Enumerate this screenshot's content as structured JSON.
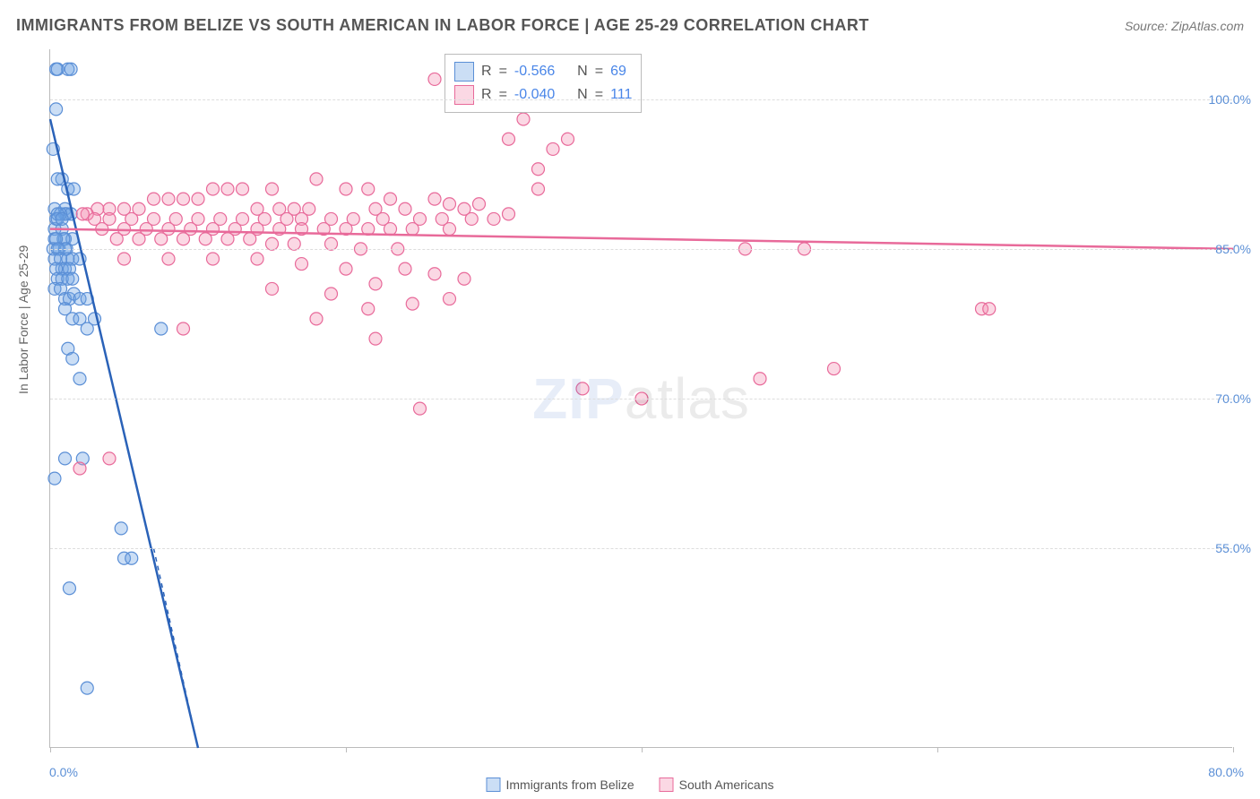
{
  "title": "IMMIGRANTS FROM BELIZE VS SOUTH AMERICAN IN LABOR FORCE | AGE 25-29 CORRELATION CHART",
  "source": "Source: ZipAtlas.com",
  "ylabel": "In Labor Force | Age 25-29",
  "watermark_zip": "ZIP",
  "watermark_atlas": "atlas",
  "chart": {
    "type": "scatter",
    "xlim": [
      0,
      80
    ],
    "ylim": [
      35,
      105
    ],
    "yticks": [
      55.0,
      70.0,
      85.0,
      100.0
    ],
    "ytick_labels": [
      "55.0%",
      "70.0%",
      "85.0%",
      "100.0%"
    ],
    "xticks": [
      0,
      20,
      40,
      60,
      80
    ],
    "x_start_label": "0.0%",
    "x_end_label": "80.0%",
    "background_color": "#ffffff",
    "grid_color": "#dddddd",
    "axis_color": "#bbbbbb",
    "marker_radius": 7,
    "marker_stroke_width": 1.2,
    "line_width": 2.5
  },
  "series": [
    {
      "name": "Immigrants from Belize",
      "label": "Immigrants from Belize",
      "color_fill": "rgba(107,160,227,0.35)",
      "color_stroke": "#5b8fd6",
      "line_color": "#2a62b8",
      "r_label": "R",
      "r_value": "-0.566",
      "n_label": "N",
      "n_value": "69",
      "trend": {
        "x1": 0,
        "y1": 98,
        "x2": 10,
        "y2": 35
      },
      "trend_dash": {
        "x1": 7,
        "y1": 55,
        "x2": 10,
        "y2": 35
      },
      "points": [
        [
          0.4,
          103
        ],
        [
          0.5,
          103
        ],
        [
          1.2,
          103
        ],
        [
          1.4,
          103
        ],
        [
          0.4,
          99
        ],
        [
          0.2,
          95
        ],
        [
          0.8,
          92
        ],
        [
          0.5,
          92
        ],
        [
          1.2,
          91
        ],
        [
          1.6,
          91
        ],
        [
          0.3,
          89
        ],
        [
          1.0,
          89
        ],
        [
          0.4,
          88
        ],
        [
          1.0,
          88.5
        ],
        [
          1.1,
          88.5
        ],
        [
          1.4,
          88.5
        ],
        [
          0.7,
          88.5
        ],
        [
          0.5,
          88.5
        ],
        [
          0.3,
          87
        ],
        [
          0.8,
          87
        ],
        [
          1.0,
          86
        ],
        [
          1.5,
          86
        ],
        [
          0.3,
          86
        ],
        [
          0.9,
          86
        ],
        [
          0.4,
          86
        ],
        [
          0.2,
          85
        ],
        [
          0.6,
          85
        ],
        [
          1.1,
          85
        ],
        [
          1.0,
          85
        ],
        [
          0.5,
          85
        ],
        [
          0.3,
          84
        ],
        [
          0.7,
          84
        ],
        [
          1.2,
          84
        ],
        [
          1.5,
          84
        ],
        [
          2.0,
          84
        ],
        [
          0.8,
          83
        ],
        [
          1.0,
          83
        ],
        [
          1.3,
          83
        ],
        [
          0.4,
          83
        ],
        [
          0.5,
          82
        ],
        [
          0.8,
          82
        ],
        [
          1.2,
          82
        ],
        [
          1.5,
          82
        ],
        [
          0.3,
          81
        ],
        [
          0.7,
          81
        ],
        [
          1.0,
          80
        ],
        [
          1.3,
          80
        ],
        [
          1.6,
          80.5
        ],
        [
          2.0,
          80
        ],
        [
          2.5,
          80
        ],
        [
          1.0,
          79
        ],
        [
          1.5,
          78
        ],
        [
          2.0,
          78
        ],
        [
          3.0,
          78
        ],
        [
          2.5,
          77
        ],
        [
          7.5,
          77
        ],
        [
          1.2,
          75
        ],
        [
          1.5,
          74
        ],
        [
          2.0,
          72
        ],
        [
          1.0,
          64
        ],
        [
          2.2,
          64
        ],
        [
          0.3,
          62
        ],
        [
          4.8,
          57
        ],
        [
          5.0,
          54
        ],
        [
          5.5,
          54
        ],
        [
          1.3,
          51
        ],
        [
          2.5,
          41
        ],
        [
          0.5,
          88
        ],
        [
          0.8,
          88
        ]
      ]
    },
    {
      "name": "South Americans",
      "label": "South Americans",
      "color_fill": "rgba(244,143,177,0.35)",
      "color_stroke": "#e86a9a",
      "line_color": "#e86a9a",
      "r_label": "R",
      "r_value": "-0.040",
      "n_label": "N",
      "n_value": "111",
      "trend": {
        "x1": 0,
        "y1": 87,
        "x2": 80,
        "y2": 85
      },
      "points": [
        [
          26,
          102
        ],
        [
          32,
          98
        ],
        [
          31,
          96
        ],
        [
          35,
          96
        ],
        [
          34,
          95
        ],
        [
          33,
          93
        ],
        [
          18,
          92
        ],
        [
          20,
          91
        ],
        [
          21.5,
          91
        ],
        [
          33,
          91
        ],
        [
          15,
          91
        ],
        [
          13,
          91
        ],
        [
          12,
          91
        ],
        [
          11,
          91
        ],
        [
          10,
          90
        ],
        [
          9,
          90
        ],
        [
          23,
          90
        ],
        [
          26,
          90
        ],
        [
          27,
          89.5
        ],
        [
          8,
          90
        ],
        [
          7,
          90
        ],
        [
          6,
          89
        ],
        [
          5,
          89
        ],
        [
          4,
          89
        ],
        [
          3.2,
          89
        ],
        [
          2.5,
          88.5
        ],
        [
          2.2,
          88.5
        ],
        [
          14,
          89
        ],
        [
          15.5,
          89
        ],
        [
          16.5,
          89
        ],
        [
          17.5,
          89
        ],
        [
          22,
          89
        ],
        [
          24,
          89
        ],
        [
          28,
          89
        ],
        [
          29,
          89.5
        ],
        [
          31,
          88.5
        ],
        [
          3,
          88
        ],
        [
          4,
          88
        ],
        [
          5.5,
          88
        ],
        [
          7,
          88
        ],
        [
          8.5,
          88
        ],
        [
          10,
          88
        ],
        [
          11.5,
          88
        ],
        [
          13,
          88
        ],
        [
          14.5,
          88
        ],
        [
          16,
          88
        ],
        [
          17,
          88
        ],
        [
          19,
          88
        ],
        [
          20.5,
          88
        ],
        [
          22.5,
          88
        ],
        [
          25,
          88
        ],
        [
          26.5,
          88
        ],
        [
          28.5,
          88
        ],
        [
          30,
          88
        ],
        [
          3.5,
          87
        ],
        [
          5,
          87
        ],
        [
          6.5,
          87
        ],
        [
          8,
          87
        ],
        [
          9.5,
          87
        ],
        [
          11,
          87
        ],
        [
          12.5,
          87
        ],
        [
          14,
          87
        ],
        [
          15.5,
          87
        ],
        [
          17,
          87
        ],
        [
          18.5,
          87
        ],
        [
          20,
          87
        ],
        [
          21.5,
          87
        ],
        [
          23,
          87
        ],
        [
          24.5,
          87
        ],
        [
          27,
          87
        ],
        [
          4.5,
          86
        ],
        [
          6,
          86
        ],
        [
          7.5,
          86
        ],
        [
          9,
          86
        ],
        [
          10.5,
          86
        ],
        [
          12,
          86
        ],
        [
          13.5,
          86
        ],
        [
          15,
          85.5
        ],
        [
          16.5,
          85.5
        ],
        [
          19,
          85.5
        ],
        [
          21,
          85
        ],
        [
          23.5,
          85
        ],
        [
          47,
          85
        ],
        [
          5,
          84
        ],
        [
          8,
          84
        ],
        [
          11,
          84
        ],
        [
          14,
          84
        ],
        [
          17,
          83.5
        ],
        [
          20,
          83
        ],
        [
          24,
          83
        ],
        [
          26,
          82.5
        ],
        [
          28,
          82
        ],
        [
          22,
          81.5
        ],
        [
          15,
          81
        ],
        [
          19,
          80.5
        ],
        [
          27,
          80
        ],
        [
          24.5,
          79.5
        ],
        [
          21.5,
          79
        ],
        [
          18,
          78
        ],
        [
          9,
          77
        ],
        [
          22,
          76
        ],
        [
          36,
          71
        ],
        [
          40,
          70
        ],
        [
          25,
          69
        ],
        [
          48,
          72
        ],
        [
          51,
          85
        ],
        [
          53,
          73
        ],
        [
          63,
          79
        ],
        [
          63.5,
          79
        ],
        [
          2,
          63
        ],
        [
          4,
          64
        ]
      ]
    }
  ],
  "legend_bottom": {
    "item1": "Immigrants from Belize",
    "item2": "South Americans"
  },
  "stats_eq": "="
}
